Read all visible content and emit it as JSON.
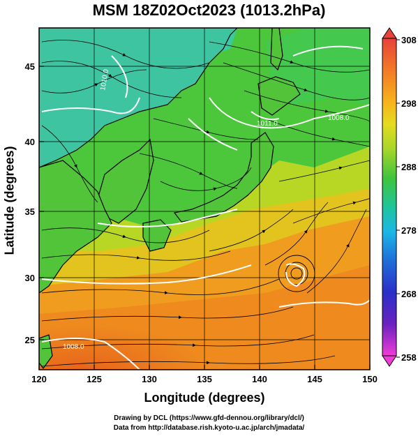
{
  "title": "MSM 18Z02Oct2023 (1013.2hPa)",
  "xlabel": "Longitude (degrees)",
  "ylabel": "Latitude  (degrees)",
  "credits": {
    "line1": "Drawing by DCL (https://www.gfd-dennou.org/library/dcl/)",
    "line2": "Data from http://database.rish.kyoto-u.ac.jp/arch/jmadata/"
  },
  "x_ticks": [
    "120",
    "125",
    "130",
    "135",
    "140",
    "145",
    "150"
  ],
  "y_ticks": [
    "25",
    "30",
    "35",
    "40",
    "45"
  ],
  "colorbar": {
    "labels": [
      "308",
      "298",
      "288",
      "278",
      "268",
      "258"
    ],
    "colors": [
      "#e8423a",
      "#f27a26",
      "#f7b21c",
      "#e4dc1e",
      "#a6d62a",
      "#3ec43c",
      "#1fc59a",
      "#1bb6e6",
      "#1f6ed8",
      "#2a2fc8",
      "#6a22c0",
      "#c21fd0",
      "#f03cd6"
    ]
  },
  "contour_labels": [
    "1010.0",
    "1011.0",
    "1008.0",
    "1008.0"
  ],
  "map_data": {
    "type": "heatmap",
    "variable": "temperature (K) with wind streamlines and pressure contours",
    "lon_range": [
      120,
      150
    ],
    "lat_range": [
      22.4,
      47.6
    ],
    "color_range": [
      258,
      308
    ],
    "grid": true
  }
}
